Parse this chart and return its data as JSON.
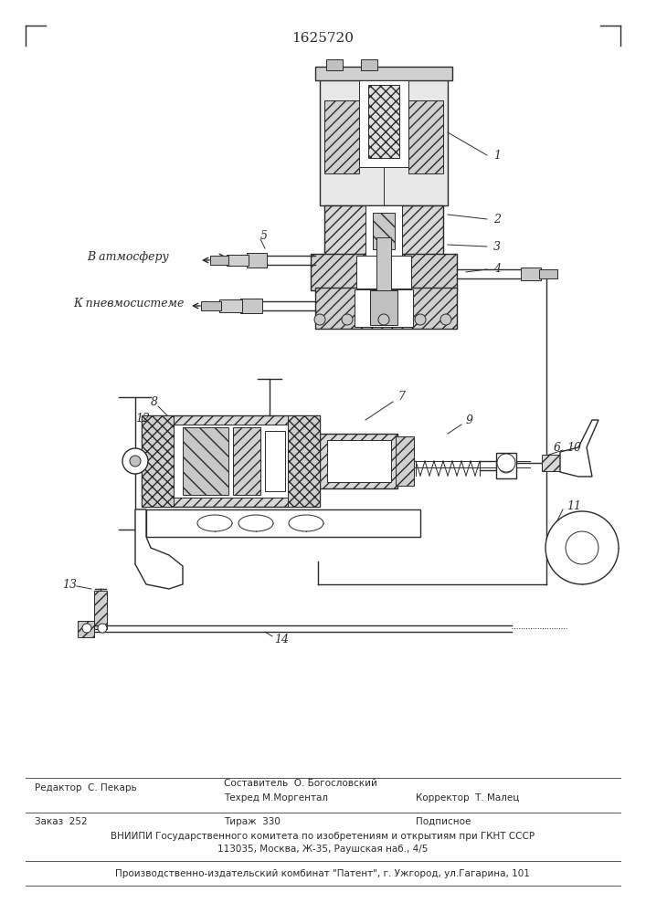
{
  "title": "1625720",
  "bg_color": "#ffffff",
  "line_color": "#2a2a2a",
  "figure_width": 7.07,
  "figure_height": 10.0,
  "dpi": 100,
  "footer_block": {
    "text_order": "Заказ  252",
    "text_tirazh": "Тираж  330",
    "text_podpisnoe": "Подписное",
    "text_vniipи": "ВНИИПИ Государственного комитета по изобретениям и открытиям при ГКНТ СССР",
    "text_address": "113035, Москва, Ж-35, Раушская наб., 4/5",
    "text_factory": "Производственно-издательский комбинат \"Патент\", г. Ужгород, ул.Гагарина, 101"
  },
  "hlines": [
    [
      0.04,
      0.96,
      0.148
    ],
    [
      0.04,
      0.96,
      0.11
    ],
    [
      0.04,
      0.96,
      0.057
    ],
    [
      0.04,
      0.96,
      0.03
    ]
  ]
}
